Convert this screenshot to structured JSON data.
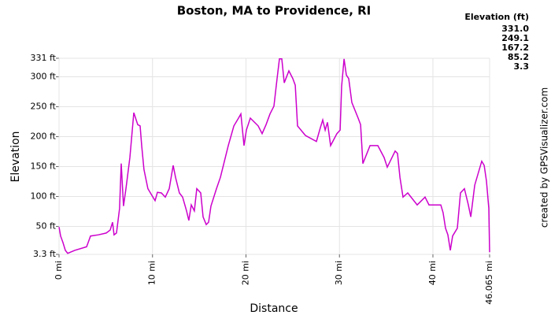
{
  "chart_data": {
    "type": "line",
    "title": "Boston, MA to Providence, RI",
    "x_label": "Distance",
    "y_label": "Elevation",
    "credit": "created by GPSVisualizer.com",
    "x": [
      0,
      0.17,
      0.42,
      0.67,
      0.93,
      1.68,
      2.95,
      3.12,
      3.37,
      4.21,
      5.05,
      5.47,
      5.73,
      5.89,
      6.15,
      6.48,
      6.65,
      6.9,
      7.16,
      7.58,
      8.0,
      8.42,
      8.67,
      8.84,
      9.09,
      9.51,
      9.93,
      10.27,
      10.53,
      10.95,
      11.37,
      11.79,
      12.21,
      12.46,
      12.88,
      13.22,
      13.64,
      13.89,
      14.15,
      14.48,
      14.74,
      15.16,
      15.41,
      15.75,
      16.0,
      16.25,
      16.84,
      17.26,
      17.69,
      18.11,
      18.7,
      19.2,
      19.45,
      19.79,
      20.04,
      20.46,
      21.31,
      21.73,
      22.15,
      22.57,
      22.99,
      23.33,
      23.58,
      23.83,
      24.09,
      24.59,
      25.01,
      25.27,
      25.52,
      26.36,
      27.54,
      27.96,
      28.21,
      28.47,
      28.72,
      29.05,
      29.73,
      30.07,
      30.23,
      30.49,
      30.74,
      30.99,
      31.33,
      32.0,
      32.26,
      32.51,
      33.27,
      34.11,
      34.78,
      35.12,
      35.96,
      36.21,
      36.47,
      36.8,
      37.31,
      38.32,
      39.16,
      39.58,
      40.84,
      41.09,
      41.35,
      41.6,
      41.86,
      42.11,
      42.61,
      42.95,
      43.37,
      43.79,
      44.05,
      44.47,
      45.22,
      45.48,
      45.73,
      45.98,
      46.065
    ],
    "values": [
      49,
      34,
      23,
      10,
      5,
      10,
      16,
      23,
      34,
      36,
      39,
      44,
      57,
      36,
      39,
      80,
      155,
      84,
      113,
      165,
      240,
      220,
      218,
      185,
      145,
      113,
      102,
      93,
      107,
      106,
      99,
      113,
      152,
      132,
      106,
      99,
      76,
      60,
      86,
      76,
      113,
      106,
      66,
      53,
      57,
      84,
      113,
      132,
      159,
      185,
      218,
      231,
      238,
      185,
      211,
      231,
      218,
      205,
      220,
      238,
      251,
      297,
      330,
      330,
      290,
      310,
      297,
      286,
      218,
      202,
      192,
      215,
      228,
      211,
      224,
      185,
      205,
      211,
      284,
      330,
      303,
      297,
      257,
      231,
      220,
      155,
      185,
      185,
      165,
      149,
      176,
      172,
      132,
      99,
      106,
      86,
      99,
      86,
      86,
      73,
      47,
      36,
      10,
      34,
      47,
      106,
      113,
      86,
      66,
      119,
      159,
      152,
      126,
      80,
      7
    ],
    "xlim": [
      0,
      46.065
    ],
    "ylim": [
      3.3,
      331
    ],
    "xticks": [
      {
        "value": 0,
        "label": "0 mi"
      },
      {
        "value": 10,
        "label": "10 mi"
      },
      {
        "value": 20,
        "label": "20 mi"
      },
      {
        "value": 30,
        "label": "30 mi"
      },
      {
        "value": 40,
        "label": "40 mi"
      },
      {
        "value": 46.065,
        "label": "46.065 mi"
      }
    ],
    "yticks": [
      {
        "value": 3.3,
        "label": "3.3 ft"
      },
      {
        "value": 50,
        "label": "50 ft"
      },
      {
        "value": 100,
        "label": "100 ft"
      },
      {
        "value": 150,
        "label": "150 ft"
      },
      {
        "value": 200,
        "label": "200 ft"
      },
      {
        "value": 250,
        "label": "250 ft"
      },
      {
        "value": 300,
        "label": "300 ft"
      },
      {
        "value": 331,
        "label": "331 ft"
      }
    ],
    "grid": true,
    "color_legend": {
      "title": "Elevation (ft)",
      "values": [
        331,
        249.1,
        167.2,
        85.2,
        3.3
      ],
      "value_labels": [
        "331.0",
        "249.1",
        "167.2",
        "85.2",
        "3.3"
      ],
      "colors": [
        "#cc00cc",
        "#0033cc",
        "#00cc99",
        "#aadd00",
        "#cc0000"
      ]
    }
  }
}
